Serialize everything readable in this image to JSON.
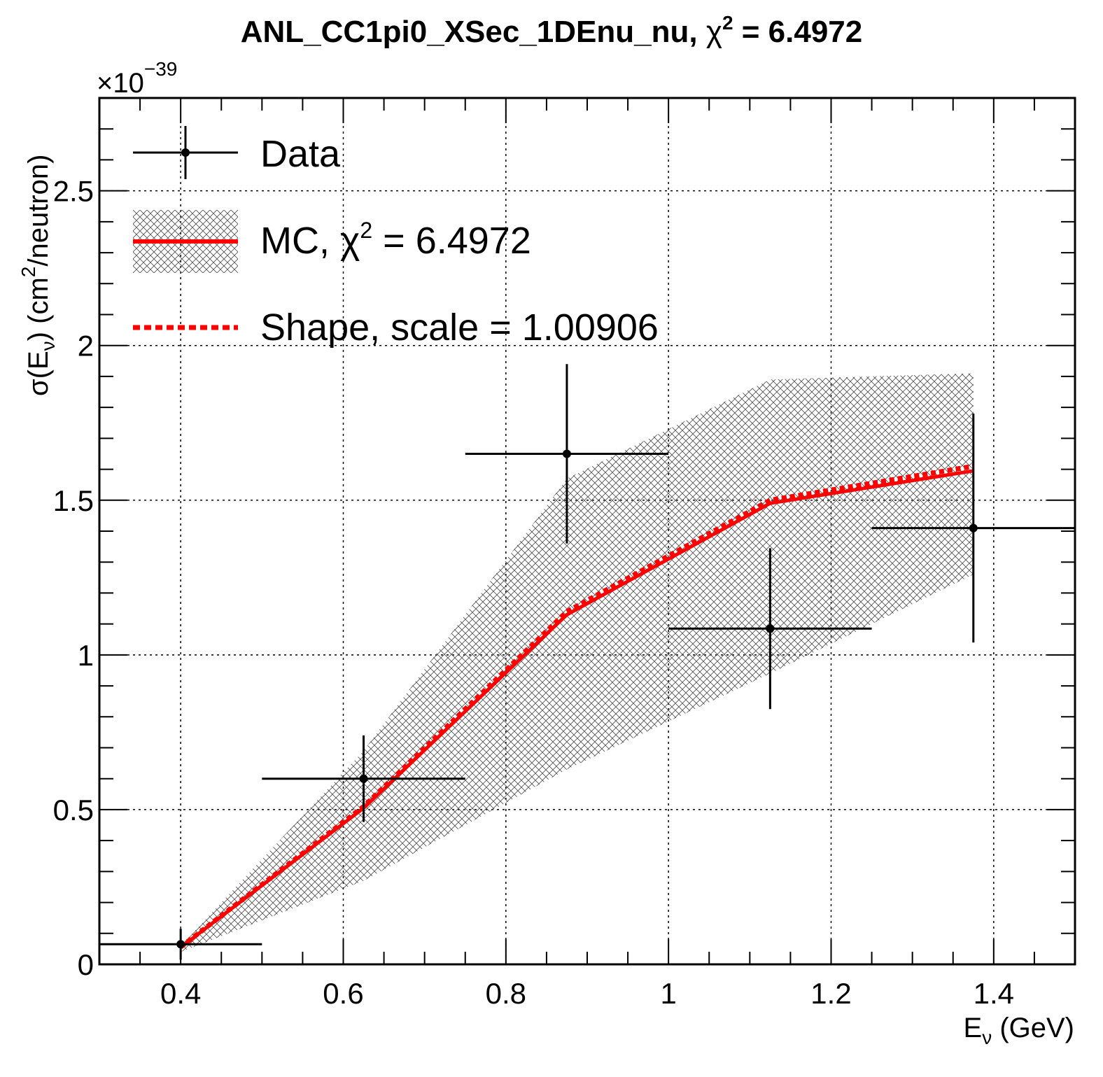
{
  "chart_data": {
    "type": "line",
    "title": "ANL_CC1pi0_XSec_1DEnu_nu, χ² = 6.4972",
    "title_parts": {
      "text": "ANL_CC1pi0_XSec_1DEnu_nu, ",
      "symbol": "χ",
      "sup": "2",
      "rest": " = 6.4972"
    },
    "xlabel": {
      "base": "E",
      "sub": "ν",
      "rest": " (GeV)"
    },
    "ylabel": {
      "pre": "σ(E",
      "sub": "ν",
      "mid": ") (cm",
      "sup": "2",
      "post": "/neutron)"
    },
    "y_exponent_label": {
      "base": "×10",
      "sup": "−39"
    },
    "xlim": [
      0.3,
      1.5
    ],
    "ylim": [
      0,
      2.8
    ],
    "x_ticks": [
      0.4,
      0.6,
      0.8,
      1.0,
      1.2,
      1.4
    ],
    "x_tick_labels": [
      "0.4",
      "0.6",
      "0.8",
      "1",
      "1.2",
      "1.4"
    ],
    "y_ticks": [
      0,
      0.5,
      1.0,
      1.5,
      2.0,
      2.5
    ],
    "y_tick_labels": [
      "0",
      "0.5",
      "1",
      "1.5",
      "2",
      "2.5"
    ],
    "grid": true,
    "legend_position": "top-left",
    "series": [
      {
        "name": "Data",
        "kind": "points_with_errors",
        "color": "#000000",
        "x": [
          0.4,
          0.625,
          0.875,
          1.125,
          1.375
        ],
        "x_low": [
          0.3,
          0.5,
          0.75,
          1.0,
          1.25
        ],
        "x_high": [
          0.5,
          0.75,
          1.0,
          1.25,
          1.5
        ],
        "y": [
          0.065,
          0.6,
          1.65,
          1.085,
          1.41
        ],
        "y_err": [
          0.05,
          0.14,
          0.29,
          0.26,
          0.37
        ]
      },
      {
        "name": "MC, χ² = 6.4972",
        "name_parts": {
          "text": "MC, ",
          "symbol": "χ",
          "sup": "2",
          "rest": " = 6.4972"
        },
        "kind": "line_with_band",
        "color": "#ff0000",
        "x": [
          0.4,
          0.625,
          0.875,
          1.125,
          1.375
        ],
        "y": [
          0.055,
          0.505,
          1.13,
          1.49,
          1.595
        ],
        "band_low": [
          0.04,
          0.27,
          0.63,
          0.94,
          1.26
        ],
        "band_high": [
          0.06,
          0.69,
          1.57,
          1.89,
          1.91
        ]
      },
      {
        "name": "Shape, scale = 1.00906",
        "kind": "dashed_line",
        "color": "#ff0000",
        "x": [
          0.4,
          0.625,
          0.875,
          1.125,
          1.375
        ],
        "y": [
          0.056,
          0.51,
          1.14,
          1.5,
          1.61
        ]
      }
    ]
  }
}
